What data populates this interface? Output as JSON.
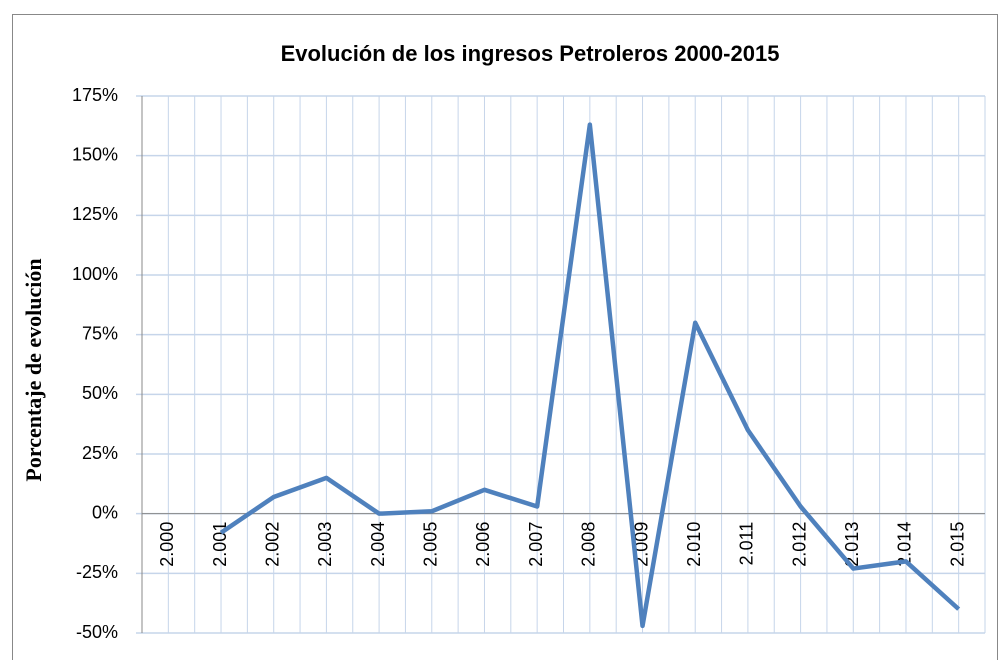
{
  "chart_data": {
    "type": "line",
    "title": "Evolución de los ingresos Petroleros 2000-2015",
    "y_label": "Porcentaje de evolución",
    "categories": [
      "2.000",
      "2.001",
      "2.002",
      "2.003",
      "2.004",
      "2.005",
      "2.006",
      "2.007",
      "2.008",
      "2.009",
      "2.010",
      "2.011",
      "2.012",
      "2.013",
      "2.014",
      "2.015"
    ],
    "series": [
      {
        "name": "Evolución",
        "color": "#4f81bd",
        "values": [
          null,
          -8,
          7,
          15,
          0,
          1,
          10,
          3,
          163,
          -47,
          80,
          35,
          3,
          -23,
          -20,
          -40
        ]
      }
    ],
    "ylim": [
      -50,
      175
    ],
    "yticks": [
      {
        "value": -50,
        "label": "-50%"
      },
      {
        "value": -25,
        "label": "-25%"
      },
      {
        "value": 0,
        "label": "0%"
      },
      {
        "value": 25,
        "label": "25%"
      },
      {
        "value": 50,
        "label": "50%"
      },
      {
        "value": 75,
        "label": "75%"
      },
      {
        "value": 100,
        "label": "100%"
      },
      {
        "value": 125,
        "label": "125%"
      },
      {
        "value": 150,
        "label": "150%"
      },
      {
        "value": 175,
        "label": "175%"
      }
    ],
    "grid": true
  }
}
